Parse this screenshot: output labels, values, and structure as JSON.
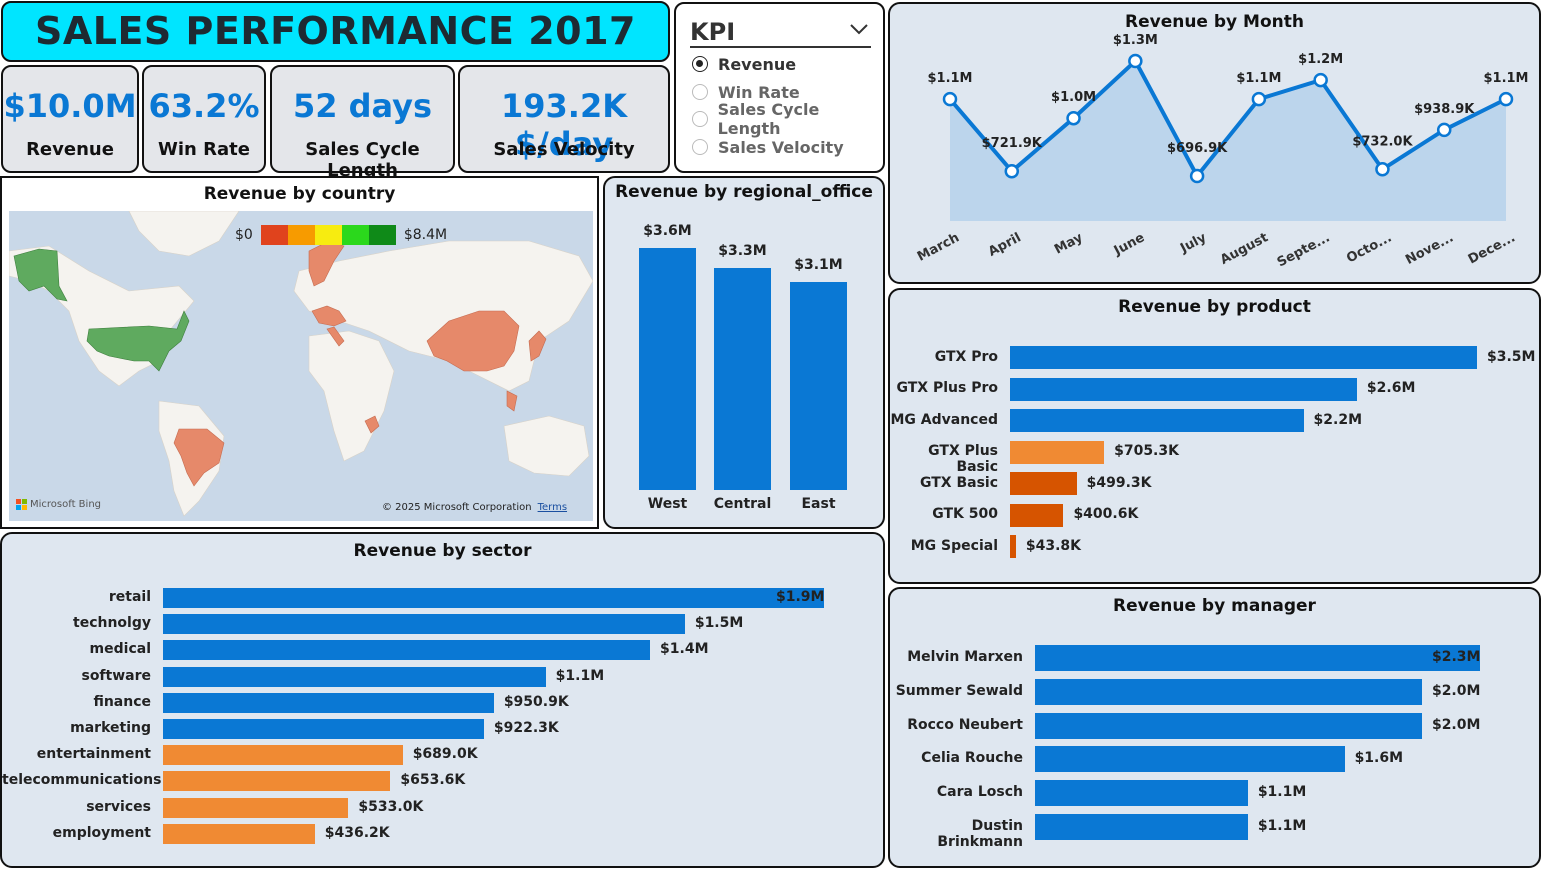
{
  "dashboard": {
    "title": "SALES PERFORMANCE 2017"
  },
  "kpis": [
    {
      "value": "$10.0M",
      "label": "Revenue"
    },
    {
      "value": "63.2%",
      "label": "Win Rate"
    },
    {
      "value": "52 days",
      "label": "Sales Cycle Length"
    },
    {
      "value": "193.2K $/day",
      "label": "Sales Velocity"
    }
  ],
  "slicer": {
    "title": "KPI",
    "options": [
      "Revenue",
      "Win Rate",
      "Sales Cycle Length",
      "Sales Velocity"
    ],
    "selected": "Revenue"
  },
  "map": {
    "title": "Revenue  by country",
    "legend_min": "$0",
    "legend_max": "$8.4M",
    "attribution": "Microsoft Bing",
    "copyright": "© 2025 Microsoft Corporation",
    "terms": "Terms",
    "scale_colors": [
      "#e0431d",
      "#f79b00",
      "#f7ec10",
      "#2bd81c",
      "#0f8a18"
    ]
  },
  "colors": {
    "blue": "#0a78d4",
    "orange": "#f08a33",
    "dark_orange": "#d65400",
    "map_green": "#5faa5f",
    "map_salmon": "#e6896a",
    "panel_bg": "#dfe7f0"
  },
  "chart_data": [
    {
      "type": "line",
      "title": "Revenue by Month",
      "categories": [
        "March",
        "April",
        "May",
        "June",
        "July",
        "August",
        "Septe...",
        "Octo...",
        "Nove...",
        "Dece..."
      ],
      "values": [
        1.1,
        0.7219,
        1.0,
        1.3,
        0.6969,
        1.1,
        1.2,
        0.732,
        0.9389,
        1.1
      ],
      "labels": [
        "$1.1M",
        "$721.9K",
        "$1.0M",
        "$1.3M",
        "$696.9K",
        "$1.1M",
        "$1.2M",
        "$732.0K",
        "$938.9K",
        "$1.1M"
      ],
      "unit": "$M"
    },
    {
      "type": "bar",
      "title": "Revenue by regional_office",
      "categories": [
        "West",
        "Central",
        "East"
      ],
      "values": [
        3.6,
        3.3,
        3.1
      ],
      "labels": [
        "$3.6M",
        "$3.3M",
        "$3.1M"
      ],
      "unit": "$M"
    },
    {
      "type": "bar",
      "orientation": "horizontal",
      "title": "Revenue by product",
      "categories": [
        "GTX Pro",
        "GTX Plus Pro",
        "MG Advanced",
        "GTX Plus Basic",
        "GTX Basic",
        "GTK 500",
        "MG Special"
      ],
      "values": [
        3.5,
        2.6,
        2.2,
        0.7053,
        0.4993,
        0.4006,
        0.0438
      ],
      "labels": [
        "$3.5M",
        "$2.6M",
        "$2.2M",
        "$705.3K",
        "$499.3K",
        "$400.6K",
        "$43.8K"
      ],
      "colors": [
        "blue",
        "blue",
        "blue",
        "orange",
        "dark_orange",
        "dark_orange",
        "dark_orange"
      ],
      "unit": "$M"
    },
    {
      "type": "bar",
      "orientation": "horizontal",
      "title": "Revenue by sector",
      "categories": [
        "retail",
        "technolgy",
        "medical",
        "software",
        "finance",
        "marketing",
        "entertainment",
        "telecommunications",
        "services",
        "employment"
      ],
      "values": [
        1.9,
        1.5,
        1.4,
        1.1,
        0.9509,
        0.9223,
        0.689,
        0.6536,
        0.533,
        0.4362
      ],
      "labels": [
        "$1.9M",
        "$1.5M",
        "$1.4M",
        "$1.1M",
        "$950.9K",
        "$922.3K",
        "$689.0K",
        "$653.6K",
        "$533.0K",
        "$436.2K"
      ],
      "colors": [
        "blue",
        "blue",
        "blue",
        "blue",
        "blue",
        "blue",
        "orange",
        "orange",
        "orange",
        "orange"
      ],
      "unit": "$M"
    },
    {
      "type": "bar",
      "orientation": "horizontal",
      "title": "Revenue by manager",
      "categories": [
        "Melvin Marxen",
        "Summer Sewald",
        "Rocco Neubert",
        "Celia Rouche",
        "Cara Losch",
        "Dustin Brinkmann"
      ],
      "values": [
        2.3,
        2.0,
        2.0,
        1.6,
        1.1,
        1.1
      ],
      "labels": [
        "$2.3M",
        "$2.0M",
        "$2.0M",
        "$1.6M",
        "$1.1M",
        "$1.1M"
      ],
      "colors": [
        "blue",
        "blue",
        "blue",
        "blue",
        "blue",
        "blue"
      ],
      "unit": "$M"
    }
  ]
}
